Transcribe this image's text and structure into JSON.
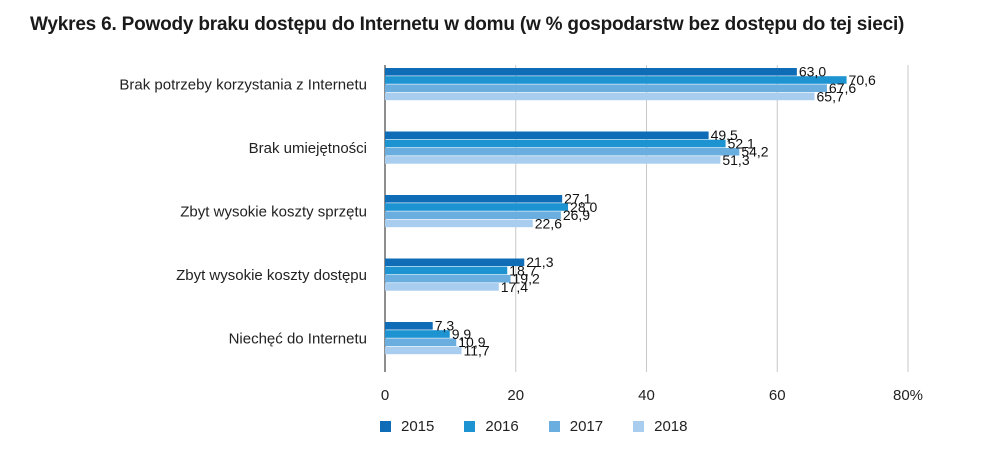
{
  "chart_data": {
    "type": "bar",
    "orientation": "horizontal",
    "title": "Wykres 6. Powody braku dostępu do Internetu w domu (w % gospodarstw bez dostępu do tej sieci)",
    "categories": [
      "Brak potrzeby korzystania z Internetu",
      "Brak umiejętności",
      "Zbyt wysokie koszty sprzętu",
      "Zbyt wysokie koszty dostępu",
      "Niechęć do Internetu"
    ],
    "series": [
      {
        "name": "2015",
        "color": "#0f6cb6",
        "values": [
          63.0,
          49.5,
          27.1,
          21.3,
          7.3
        ],
        "labels": [
          "63,0",
          "49,5",
          "27,1",
          "21,3",
          "7,3"
        ]
      },
      {
        "name": "2016",
        "color": "#1d93d2",
        "values": [
          70.6,
          52.1,
          28.0,
          18.7,
          9.9
        ],
        "labels": [
          "70,6",
          "52,1",
          "28,0",
          "18,7",
          "9,9"
        ]
      },
      {
        "name": "2017",
        "color": "#6aaee0",
        "values": [
          67.6,
          54.2,
          26.9,
          19.2,
          10.9
        ],
        "labels": [
          "67,6",
          "54,2",
          "26,9",
          "19,2",
          "10,9"
        ]
      },
      {
        "name": "2018",
        "color": "#a9cdef",
        "values": [
          65.7,
          51.3,
          22.6,
          17.4,
          11.7
        ],
        "labels": [
          "65,7",
          "51,3",
          "22,6",
          "17,4",
          "11,7"
        ]
      }
    ],
    "xlim": [
      0,
      80
    ],
    "xticks": [
      0,
      20,
      40,
      60,
      80
    ],
    "xtick_labels": [
      "0",
      "20",
      "40",
      "60",
      "80%"
    ],
    "xlabel": "",
    "ylabel": "",
    "grid": true,
    "legend_position": "bottom"
  }
}
